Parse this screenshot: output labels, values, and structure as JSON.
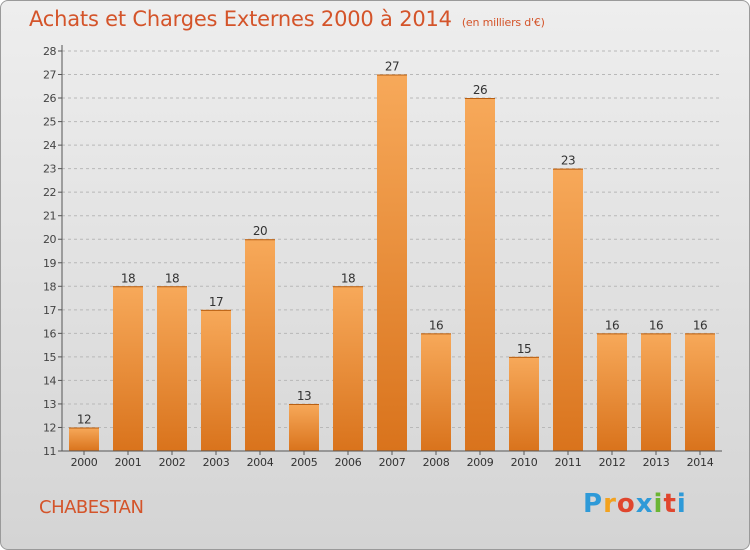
{
  "title": "Achats et Charges Externes 2000 à 2014",
  "unit_label": "(en milliers d'€)",
  "commune": "CHABESTAN",
  "brand": "Proxiti",
  "colors": {
    "title": "#d4542a",
    "bar_top": "#f7a95a",
    "bar_bottom": "#d9731c",
    "axis": "#555555",
    "grid": "#b8b8b8"
  },
  "chart_data": {
    "type": "bar",
    "categories": [
      "2000",
      "2001",
      "2002",
      "2003",
      "2004",
      "2005",
      "2006",
      "2007",
      "2008",
      "2009",
      "2010",
      "2011",
      "2012",
      "2013",
      "2014"
    ],
    "values": [
      12,
      18,
      18,
      17,
      20,
      13,
      18,
      27,
      16,
      26,
      15,
      23,
      16,
      16,
      16
    ],
    "ylim": [
      11,
      28
    ],
    "yticks": [
      11,
      12,
      13,
      14,
      15,
      16,
      17,
      18,
      19,
      20,
      21,
      22,
      23,
      24,
      25,
      26,
      27,
      28
    ],
    "grid": true,
    "data_labels": true
  }
}
